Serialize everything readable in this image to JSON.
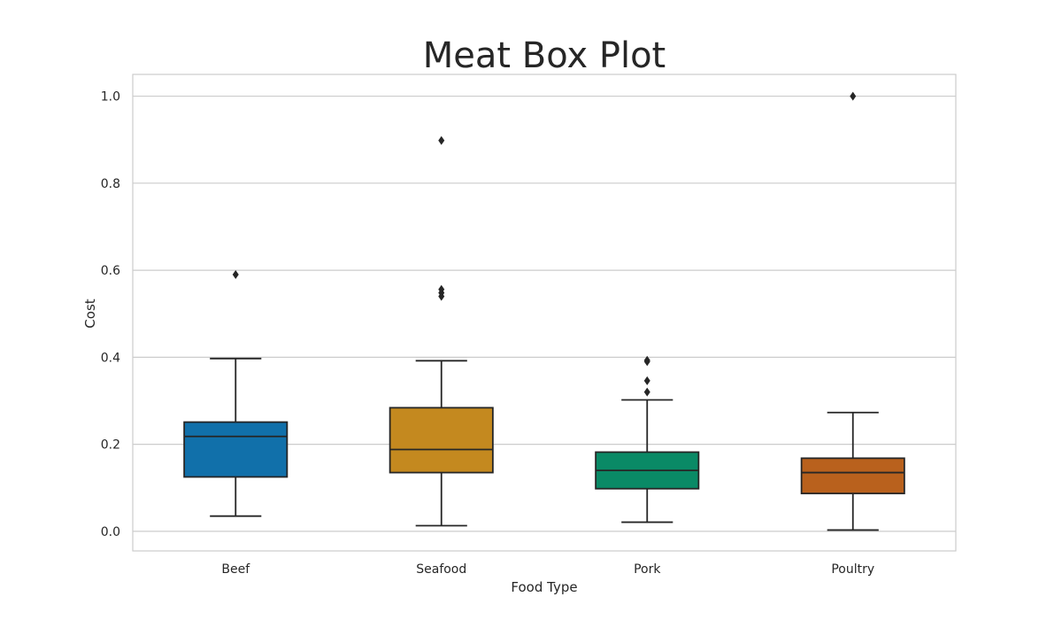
{
  "chart_data": {
    "type": "box",
    "title": "Meat Box Plot",
    "xlabel": "Food Type",
    "ylabel": "Cost",
    "ylim": [
      -0.045,
      1.05
    ],
    "yticks": [
      0.0,
      0.2,
      0.4,
      0.6,
      0.8,
      1.0
    ],
    "ytick_labels": [
      "0.0",
      "0.2",
      "0.4",
      "0.6",
      "0.8",
      "1.0"
    ],
    "grid": true,
    "categories": [
      "Beef",
      "Seafood",
      "Pork",
      "Poultry"
    ],
    "boxes": [
      {
        "category": "Beef",
        "whisker_low": 0.035,
        "q1": 0.125,
        "median": 0.218,
        "q3": 0.251,
        "whisker_high": 0.397,
        "outliers": [
          0.59
        ],
        "color": "#1170aa"
      },
      {
        "category": "Seafood",
        "whisker_low": 0.013,
        "q1": 0.135,
        "median": 0.188,
        "q3": 0.284,
        "whisker_high": 0.392,
        "outliers": [
          0.54,
          0.548,
          0.556,
          0.898
        ],
        "color": "#c4891f"
      },
      {
        "category": "Pork",
        "whisker_low": 0.021,
        "q1": 0.098,
        "median": 0.14,
        "q3": 0.182,
        "whisker_high": 0.302,
        "outliers": [
          0.32,
          0.346,
          0.39,
          0.393
        ],
        "color": "#0a8a66"
      },
      {
        "category": "Poultry",
        "whisker_low": 0.003,
        "q1": 0.087,
        "median": 0.135,
        "q3": 0.168,
        "whisker_high": 0.273,
        "outliers": [
          1.0
        ],
        "color": "#b9611d"
      }
    ],
    "colors": {
      "grid": "#cccccc",
      "frame": "#cccccc",
      "line": "#262626",
      "outlier": "#262626"
    }
  }
}
